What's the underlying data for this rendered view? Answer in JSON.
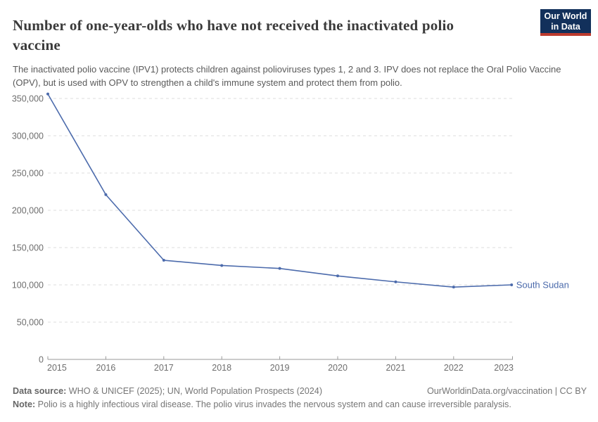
{
  "header": {
    "title": "Number of one-year-olds who have not received the inactivated polio vaccine",
    "subtitle": "The inactivated polio vaccine (IPV1) protects children against polioviruses types 1, 2 and 3. IPV does not replace the Oral Polio Vaccine (OPV), but is used with OPV to strengthen a child's immune system and protect them from polio.",
    "logo": {
      "line1": "Our World",
      "line2": "in Data"
    }
  },
  "chart_data": {
    "type": "line",
    "title": "Number of one-year-olds who have not received the inactivated polio vaccine",
    "x": [
      2015,
      2016,
      2017,
      2018,
      2019,
      2020,
      2021,
      2022,
      2023
    ],
    "series": [
      {
        "name": "South Sudan",
        "color": "#4c6bac",
        "values": [
          356000,
          221000,
          133000,
          126000,
          122000,
          112000,
          104000,
          97000,
          100000
        ]
      }
    ],
    "xlabel": "",
    "ylabel": "",
    "ylim": [
      0,
      350000
    ],
    "yticks": [
      0,
      50000,
      100000,
      150000,
      200000,
      250000,
      300000,
      350000
    ],
    "ytick_labels": [
      "0",
      "50,000",
      "100,000",
      "150,000",
      "200,000",
      "250,000",
      "300,000",
      "350,000"
    ],
    "grid": "horizontal-dashed",
    "legend": "line-end-label"
  },
  "colors": {
    "line": "#4c6bac",
    "grid": "#dcdcdc",
    "axis": "#9a9a9a",
    "tick_text": "#6e6e6e",
    "logo_navy": "#12305b",
    "logo_red": "#bc3b2e"
  },
  "footer": {
    "datasource_label": "Data source:",
    "datasource": " WHO & UNICEF (2025); UN, World Population Prospects (2024)",
    "rights": "OurWorldinData.org/vaccination | CC BY",
    "note_label": "Note:",
    "note": " Polio is a highly infectious viral disease. The polio virus invades the nervous system and can cause irreversible paralysis."
  }
}
